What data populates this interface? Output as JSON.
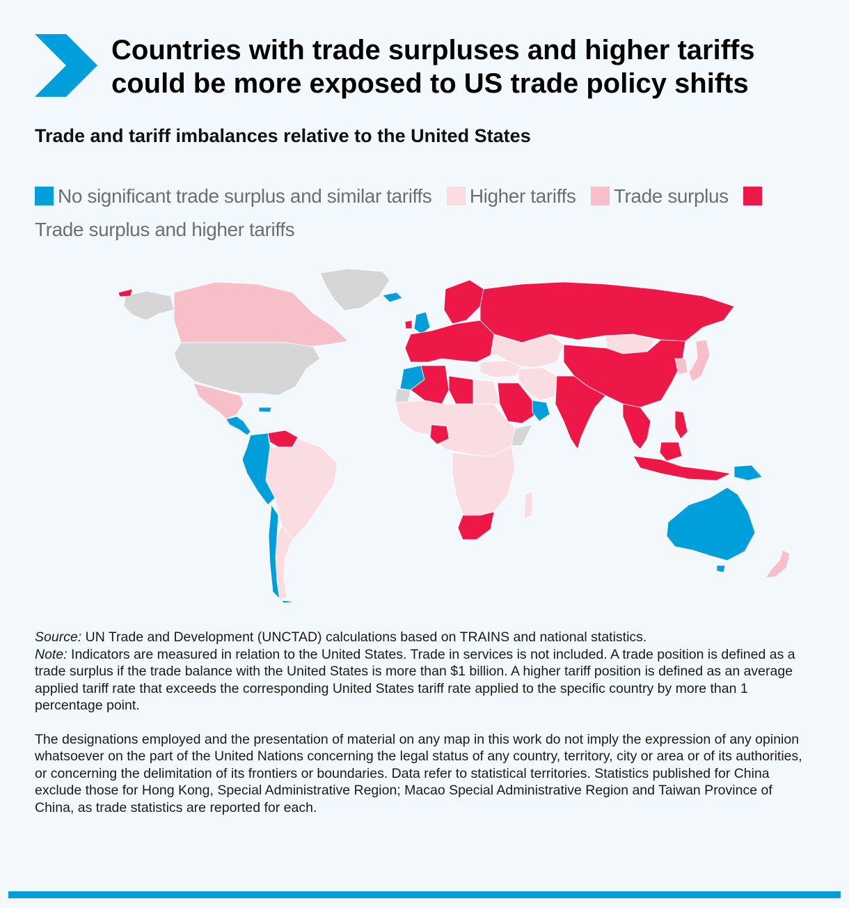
{
  "header": {
    "title_line1": "Countries with trade surpluses and higher tariffs",
    "title_line2": "could be more exposed to US trade policy shifts",
    "subtitle": "Trade and tariff imbalances relative to the United States",
    "chevron_icon": "chevron-right-icon"
  },
  "legend": {
    "items": [
      {
        "label": "No significant trade surplus and similar tariffs",
        "color": "#009edb"
      },
      {
        "label": "Higher tariffs",
        "color": "#f9dde2"
      },
      {
        "label": "Trade surplus",
        "color": "#f7c0c9"
      },
      {
        "label": "Trade surplus and higher tariffs",
        "color": "#ed1847"
      }
    ]
  },
  "colors": {
    "no_data": "#d6d6d6",
    "accent": "#009edb",
    "background": "#f3f8fc"
  },
  "notes": {
    "source_label": "Source:",
    "source_text": " UN Trade and Development (UNCTAD) calculations based on TRAINS and national statistics.",
    "note_label": "Note:",
    "note_text": " Indicators are measured in relation to the United States. Trade in services is not included. A trade position is defined as a trade surplus if the trade balance with the United States is more than $1 billion. A higher tariff position is defined as an average applied tariff rate that exceeds the corresponding United States tariff rate applied to the specific country by more than 1 percentage point.",
    "disclaimer": "The designations employed and the presentation of material on any map in this work do not imply the expression of any opinion whatsoever on the part of the United Nations concerning the legal status of any country, territory, city or area or of its authorities, or concerning the delimitation of its frontiers or boundaries. Data refer to statistical territories. Statistics published for China exclude those for Hong Kong, Special Administrative Region; Macao Special Administrative Region and Taiwan Province of China, as trade statistics are reported for each."
  }
}
